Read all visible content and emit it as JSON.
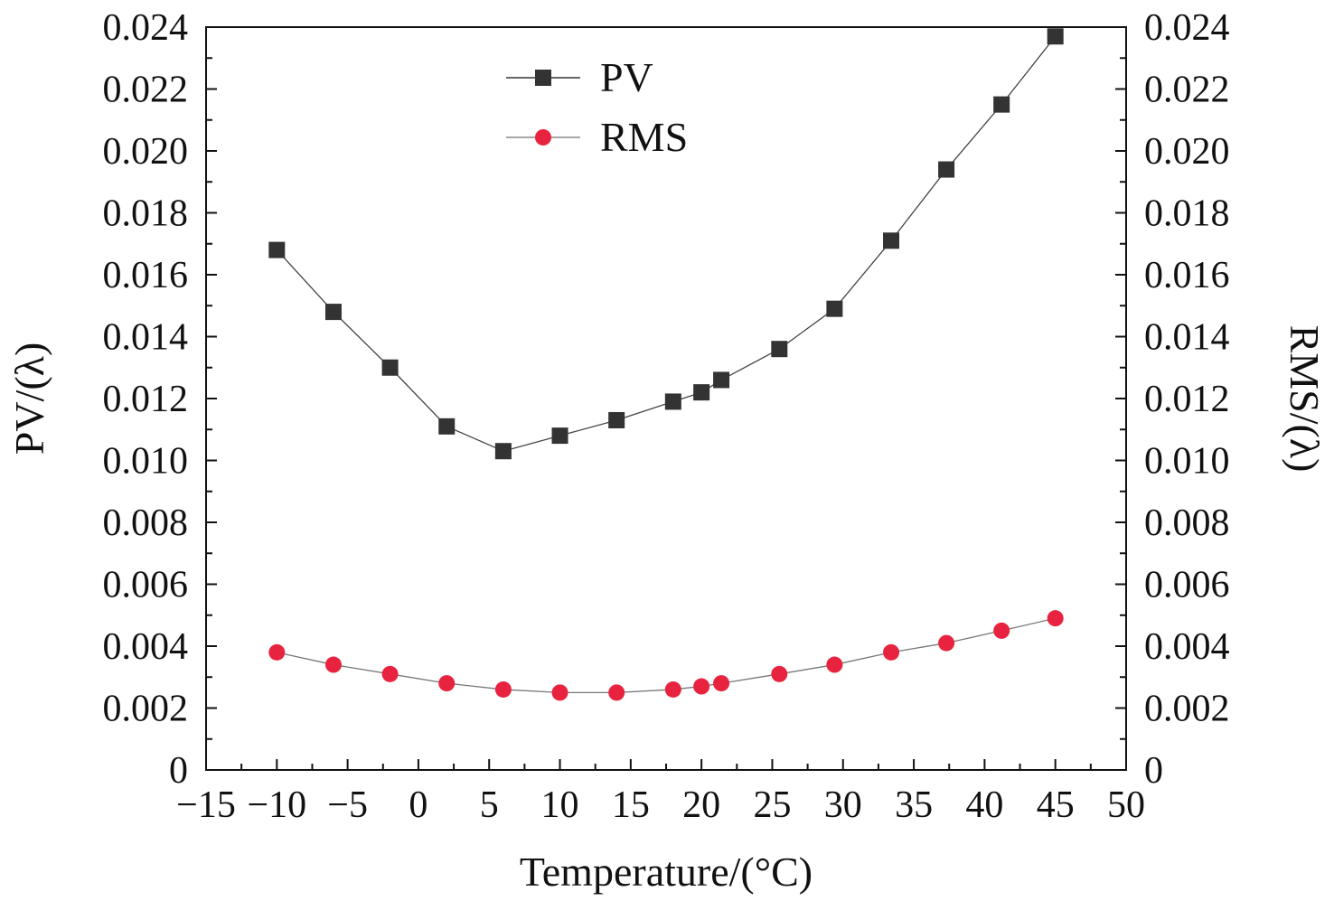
{
  "chart_data": {
    "type": "line",
    "title": "",
    "xlabel": "Temperature/(°C)",
    "ylabel_left": "PV/(λ)",
    "ylabel_right": "RMS/(λ)",
    "xlim": [
      -15,
      50
    ],
    "ylim": [
      0,
      0.024
    ],
    "x_ticks": [
      "−15",
      "−10",
      "−5",
      "0",
      "5",
      "10",
      "15",
      "20",
      "25",
      "30",
      "35",
      "40",
      "45",
      "50"
    ],
    "x_tick_values": [
      -15,
      -10,
      -5,
      0,
      5,
      10,
      15,
      20,
      25,
      30,
      35,
      40,
      45,
      50
    ],
    "y_ticks": [
      "0",
      "0.002",
      "0.004",
      "0.006",
      "0.008",
      "0.010",
      "0.012",
      "0.014",
      "0.016",
      "0.018",
      "0.020",
      "0.022",
      "0.024"
    ],
    "y_tick_values": [
      0,
      0.002,
      0.004,
      0.006,
      0.008,
      0.01,
      0.012,
      0.014,
      0.016,
      0.018,
      0.02,
      0.022,
      0.024
    ],
    "x": [
      -10,
      -6,
      -2,
      2,
      6,
      10,
      14,
      18,
      20,
      21.4,
      25.5,
      29.4,
      33.4,
      37.3,
      41.2,
      45
    ],
    "series": [
      {
        "name": "PV",
        "marker": "square",
        "color": "#333333",
        "values": [
          0.0168,
          0.0148,
          0.013,
          0.0111,
          0.0103,
          0.0108,
          0.0113,
          0.0119,
          0.0122,
          0.0126,
          0.0136,
          0.0149,
          0.0171,
          0.0194,
          0.0215,
          0.0237
        ]
      },
      {
        "name": "RMS",
        "marker": "circle",
        "color": "#e8233f",
        "values": [
          0.0038,
          0.0034,
          0.0031,
          0.0028,
          0.0026,
          0.0025,
          0.0025,
          0.0026,
          0.0027,
          0.0028,
          0.0031,
          0.0034,
          0.0038,
          0.0041,
          0.0045,
          0.0049
        ]
      }
    ],
    "legend_position": "top-center",
    "grid": false
  }
}
